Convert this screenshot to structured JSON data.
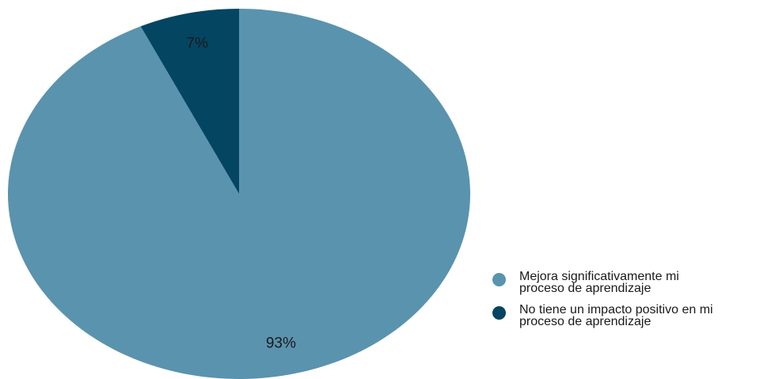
{
  "chart_data": {
    "type": "pie",
    "title": "",
    "slices": [
      {
        "label": "Mejora significativamente mi\nproceso de aprendizaje",
        "value": 93,
        "value_label": "93%",
        "color": "#5a93ae"
      },
      {
        "label": "No tiene un impacto positivo en mi\nproceso de aprendizaje",
        "value": 7,
        "value_label": "7%",
        "color": "#044562"
      }
    ],
    "legend_position": "bottom-right"
  }
}
